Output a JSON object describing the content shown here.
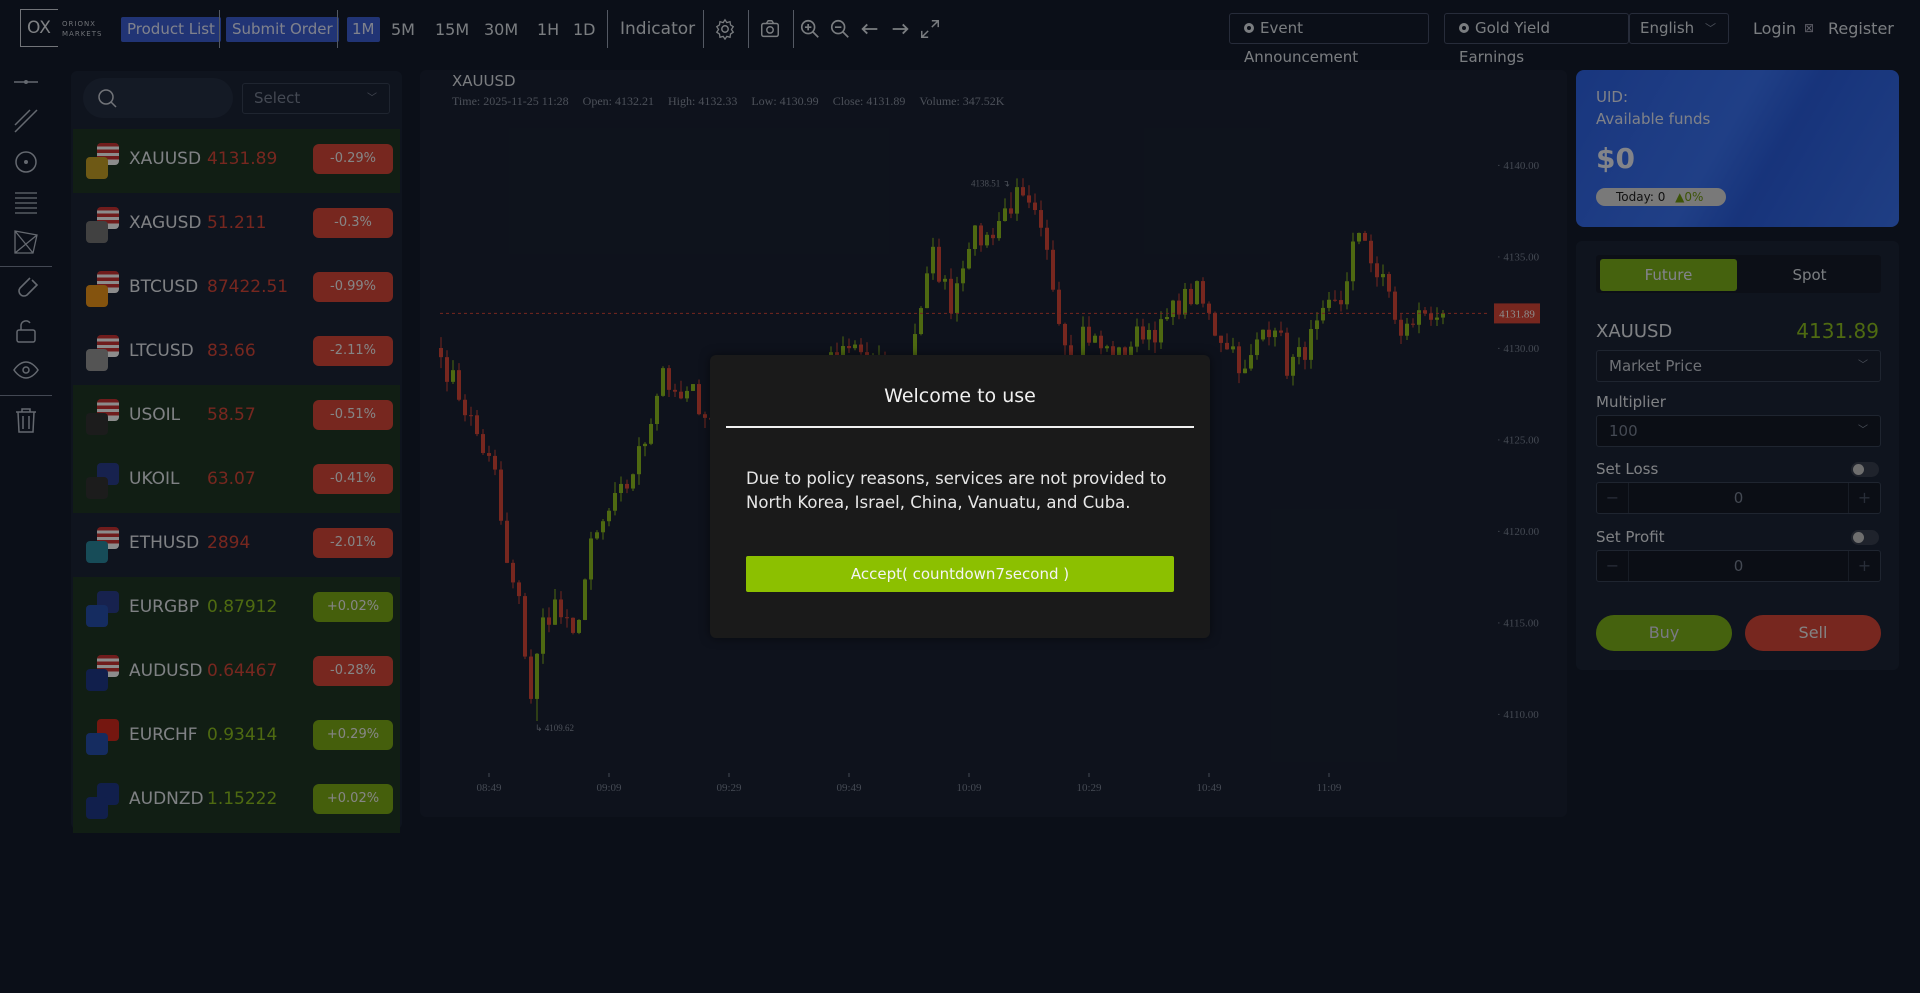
{
  "header": {
    "logo_text": "OX",
    "logo_sub": "ORIONX MARKETS",
    "product_list": "Product List",
    "submit_order": "Submit Order",
    "timeframes": [
      "1M",
      "5M",
      "15M",
      "30M",
      "1H",
      "1D"
    ],
    "active_timeframe": "1M",
    "indicator": "Indicator",
    "event_announcement": "Event Announcement",
    "gold_yield": "Gold Yield Earnings",
    "language": "English",
    "login": "Login",
    "separator_glyph": "⊠",
    "register": "Register"
  },
  "list": {
    "search_placeholder": "",
    "select_placeholder": "Select",
    "items": [
      {
        "symbol": "XAUUSD",
        "price": "4131.89",
        "change": "-0.29%",
        "dir": "down",
        "highlight": true
      },
      {
        "symbol": "XAGUSD",
        "price": "51.211",
        "change": "-0.3%",
        "dir": "down",
        "highlight": false
      },
      {
        "symbol": "BTCUSD",
        "price": "87422.51",
        "change": "-0.99%",
        "dir": "down",
        "highlight": false
      },
      {
        "symbol": "LTCUSD",
        "price": "83.66",
        "change": "-2.11%",
        "dir": "down",
        "highlight": false
      },
      {
        "symbol": "USOIL",
        "price": "58.57",
        "change": "-0.51%",
        "dir": "down",
        "highlight": true
      },
      {
        "symbol": "UKOIL",
        "price": "63.07",
        "change": "-0.41%",
        "dir": "down",
        "highlight": true
      },
      {
        "symbol": "ETHUSD",
        "price": "2894",
        "change": "-2.01%",
        "dir": "down",
        "highlight": false
      },
      {
        "symbol": "EURGBP",
        "price": "0.87912",
        "change": "+0.02%",
        "dir": "up",
        "highlight": true
      },
      {
        "symbol": "AUDUSD",
        "price": "0.64467",
        "change": "-0.28%",
        "dir": "down",
        "highlight": true
      },
      {
        "symbol": "EURCHF",
        "price": "0.93414",
        "change": "+0.29%",
        "dir": "up",
        "highlight": true
      },
      {
        "symbol": "AUDNZD",
        "price": "1.15222",
        "change": "+0.02%",
        "dir": "up",
        "highlight": true
      }
    ]
  },
  "chart_info": {
    "symbol": "XAUUSD",
    "time": "Time: 2025-11-25 11:28",
    "open": "Open: 4132.21",
    "high": "High: 4132.33",
    "low": "Low: 4130.99",
    "close": "Close: 4131.89",
    "volume": "Volume: 347.52K"
  },
  "chart_data": {
    "type": "candlestick",
    "interval": "1M",
    "x_ticks": [
      "08:49",
      "09:09",
      "09:29",
      "09:49",
      "10:09",
      "10:29",
      "10:49",
      "11:09"
    ],
    "y_ticks": [
      "4110.00",
      "4115.00",
      "4120.00",
      "4125.00",
      "4130.00",
      "4135.00",
      "4140.00"
    ],
    "ylim": [
      4106,
      4143
    ],
    "xlim": [
      "08:41",
      "11:28"
    ],
    "last_price": "4131.89",
    "high_label": "4138.51",
    "low_label": "4109.62",
    "colors": {
      "up": "#8fbf1f",
      "down": "#d9473a"
    },
    "close_path": [
      [
        "08:41",
        4129.5
      ],
      [
        "08:43",
        4128.2
      ],
      [
        "08:46",
        4126
      ],
      [
        "08:50",
        4123
      ],
      [
        "08:52",
        4118
      ],
      [
        "08:54",
        4116
      ],
      [
        "08:56",
        4111
      ],
      [
        "08:58",
        4115
      ],
      [
        "09:00",
        4116
      ],
      [
        "09:03",
        4114
      ],
      [
        "09:06",
        4119
      ],
      [
        "09:09",
        4121
      ],
      [
        "09:12",
        4122.5
      ],
      [
        "09:15",
        4125
      ],
      [
        "09:18",
        4129
      ],
      [
        "09:20",
        4127
      ],
      [
        "09:23",
        4127.5
      ],
      [
        "09:26",
        4126
      ],
      [
        "09:29",
        4124.5
      ],
      [
        "09:35",
        4127
      ],
      [
        "09:45",
        4129
      ],
      [
        "09:50",
        4130
      ],
      [
        "09:58",
        4128
      ],
      [
        "10:00",
        4131
      ],
      [
        "10:03",
        4135
      ],
      [
        "10:06",
        4132.5
      ],
      [
        "10:09",
        4136
      ],
      [
        "10:12",
        4136
      ],
      [
        "10:15",
        4137.5
      ],
      [
        "10:17",
        4138.2
      ],
      [
        "10:20",
        4137
      ],
      [
        "10:22",
        4135
      ],
      [
        "10:24",
        4132
      ],
      [
        "10:26",
        4129
      ],
      [
        "10:28",
        4131
      ],
      [
        "10:31",
        4130
      ],
      [
        "10:34",
        4129.5
      ],
      [
        "10:38",
        4131
      ],
      [
        "10:41",
        4131
      ],
      [
        "10:44",
        4132.5
      ],
      [
        "10:47",
        4133
      ],
      [
        "10:50",
        4131
      ],
      [
        "10:53",
        4130
      ],
      [
        "10:55",
        4128.5
      ],
      [
        "10:58",
        4131
      ],
      [
        "11:00",
        4131.5
      ],
      [
        "11:02",
        4129
      ],
      [
        "11:04",
        4129.5
      ],
      [
        "11:06",
        4130.5
      ],
      [
        "11:09",
        4132
      ],
      [
        "11:11",
        4132.5
      ],
      [
        "11:13",
        4135.5
      ],
      [
        "11:15",
        4136
      ],
      [
        "11:17",
        4134
      ],
      [
        "11:19",
        4133
      ],
      [
        "11:21",
        4130.5
      ],
      [
        "11:23",
        4131.5
      ],
      [
        "11:25",
        4132
      ],
      [
        "11:28",
        4131.89
      ]
    ]
  },
  "fund": {
    "uid": "UID:",
    "available": "Available funds",
    "amount": "$0",
    "today": "Today: 0",
    "today_change": "▲0%"
  },
  "order": {
    "tab_future": "Future",
    "tab_spot": "Spot",
    "symbol": "XAUUSD",
    "price": "4131.89",
    "price_type": "Market Price",
    "multiplier_label": "Multiplier",
    "multiplier": "100",
    "set_loss": "Set Loss",
    "loss_value": "0",
    "set_profit": "Set Profit",
    "profit_value": "0",
    "minus": "−",
    "plus": "+",
    "buy": "Buy",
    "sell": "Sell"
  },
  "modal": {
    "title": "Welcome to use",
    "body": "Due to policy reasons, services are not provided to North Korea, Israel, China, Vanuatu, and Cuba.",
    "accept": "Accept( countdown7second )"
  }
}
